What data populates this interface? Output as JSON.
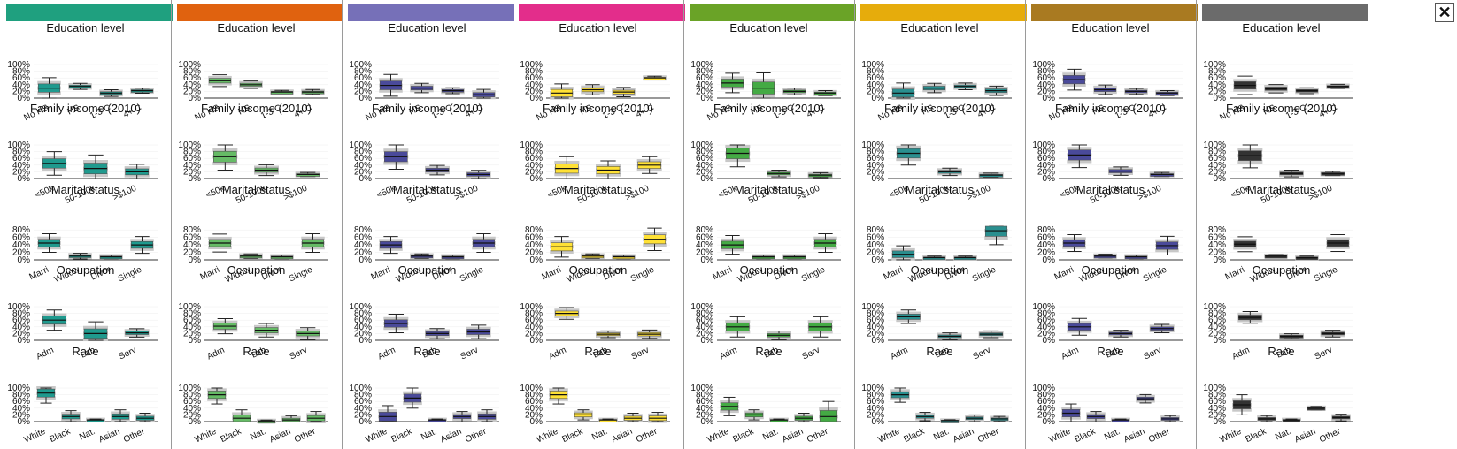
{
  "close_button": {
    "glyph": "✕",
    "icon": "close-icon"
  },
  "y_ticks_full": [
    "100%",
    "80%",
    "60%",
    "40%",
    "20%",
    "0%"
  ],
  "y_ticks_marital": [
    "80%",
    "60%",
    "40%",
    "20%",
    "0%"
  ],
  "chart_data": {
    "type": "boxplot",
    "yrange": [
      0,
      100
    ],
    "columns": [
      {
        "header_color": "#1fa07f",
        "highlight": "#1f9a8e"
      },
      {
        "header_color": "#e0620f",
        "highlight": "#66bb66"
      },
      {
        "header_color": "#7670b8",
        "highlight": "#4a4a9a"
      },
      {
        "header_color": "#e32d8b",
        "highlight": "#ffe135"
      },
      {
        "header_color": "#6aa327",
        "highlight": "#44aa44"
      },
      {
        "header_color": "#e6ac0c",
        "highlight": "#2a8f8f"
      },
      {
        "header_color": "#a97a21",
        "highlight": "#4a4a9a"
      },
      {
        "header_color": "#6b6b6b",
        "highlight": "#333333"
      }
    ],
    "panels": [
      {
        "title": "Education level",
        "categories": [
          "No HS",
          "HS",
          "1-3 C",
          "4+ C"
        ],
        "ymax": 100,
        "values": [
          [
            [
              30,
              62
            ],
            [
              35,
              18
            ],
            [
              15,
              20
            ],
            [
              22,
              15
            ]
          ],
          [
            [
              52,
              35
            ],
            [
              40,
              22
            ],
            [
              18,
              10
            ],
            [
              18,
              15
            ]
          ],
          [
            [
              38,
              65
            ],
            [
              30,
              28
            ],
            [
              22,
              18
            ],
            [
              10,
              32
            ]
          ],
          [
            [
              15,
              55
            ],
            [
              25,
              30
            ],
            [
              18,
              28
            ],
            [
              60,
              10
            ]
          ],
          [
            [
              45,
              58
            ],
            [
              30,
              90
            ],
            [
              20,
              20
            ],
            [
              15,
              15
            ]
          ],
          [
            [
              15,
              60
            ],
            [
              30,
              28
            ],
            [
              35,
              20
            ],
            [
              22,
              28
            ]
          ],
          [
            [
              55,
              62
            ],
            [
              25,
              28
            ],
            [
              20,
              18
            ],
            [
              15,
              15
            ]
          ],
          [
            [
              38,
              55
            ],
            [
              28,
              25
            ],
            [
              22,
              18
            ],
            [
              35,
              12
            ]
          ]
        ]
      },
      {
        "title": "Family income (2010)",
        "categories": [
          "<50k",
          "50-100k",
          ">$100"
        ],
        "ymax": 100,
        "values": [
          [
            [
              45,
              70
            ],
            [
              30,
              80
            ],
            [
              20,
              45
            ]
          ],
          [
            [
              65,
              80
            ],
            [
              25,
              32
            ],
            [
              12,
              12
            ]
          ],
          [
            [
              65,
              75
            ],
            [
              25,
              28
            ],
            [
              12,
              25
            ]
          ],
          [
            [
              30,
              70
            ],
            [
              25,
              55
            ],
            [
              40,
              50
            ]
          ],
          [
            [
              75,
              80
            ],
            [
              15,
              20
            ],
            [
              10,
              15
            ]
          ],
          [
            [
              75,
              70
            ],
            [
              20,
              22
            ],
            [
              10,
              12
            ]
          ],
          [
            [
              70,
              75
            ],
            [
              22,
              25
            ],
            [
              12,
              12
            ]
          ],
          [
            [
              68,
              72
            ],
            [
              15,
              20
            ],
            [
              15,
              12
            ]
          ]
        ]
      },
      {
        "title": "Marital status",
        "categories": [
          "Marri",
          "Widow",
          "Divor",
          "Single"
        ],
        "ymax": 90,
        "values": [
          [
            [
              45,
              50
            ],
            [
              10,
              15
            ],
            [
              8,
              10
            ],
            [
              40,
              45
            ]
          ],
          [
            [
              45,
              48
            ],
            [
              10,
              12
            ],
            [
              8,
              10
            ],
            [
              45,
              50
            ]
          ],
          [
            [
              40,
              45
            ],
            [
              10,
              12
            ],
            [
              8,
              10
            ],
            [
              45,
              50
            ]
          ],
          [
            [
              35,
              55
            ],
            [
              10,
              12
            ],
            [
              8,
              10
            ],
            [
              55,
              60
            ]
          ],
          [
            [
              40,
              50
            ],
            [
              8,
              10
            ],
            [
              8,
              10
            ],
            [
              45,
              50
            ]
          ],
          [
            [
              15,
              45
            ],
            [
              6,
              8
            ],
            [
              6,
              8
            ],
            [
              78,
              75
            ]
          ],
          [
            [
              45,
              45
            ],
            [
              10,
              10
            ],
            [
              8,
              10
            ],
            [
              38,
              50
            ]
          ],
          [
            [
              42,
              40
            ],
            [
              10,
              8
            ],
            [
              6,
              8
            ],
            [
              45,
              45
            ]
          ]
        ]
      },
      {
        "title": "Occupation",
        "categories": [
          "Adm",
          "Lab",
          "Serv"
        ],
        "ymax": 100,
        "values": [
          [
            [
              60,
              60
            ],
            [
              20,
              70
            ],
            [
              22,
              25
            ]
          ],
          [
            [
              42,
              45
            ],
            [
              30,
              40
            ],
            [
              20,
              35
            ]
          ],
          [
            [
              50,
              55
            ],
            [
              20,
              30
            ],
            [
              25,
              40
            ]
          ],
          [
            [
              80,
              35
            ],
            [
              18,
              20
            ],
            [
              18,
              25
            ]
          ],
          [
            [
              40,
              60
            ],
            [
              15,
              25
            ],
            [
              40,
              60
            ]
          ],
          [
            [
              70,
              40
            ],
            [
              12,
              20
            ],
            [
              18,
              20
            ]
          ],
          [
            [
              40,
              50
            ],
            [
              20,
              20
            ],
            [
              35,
              25
            ]
          ],
          [
            [
              68,
              35
            ],
            [
              12,
              15
            ],
            [
              20,
              20
            ]
          ]
        ]
      },
      {
        "title": "Race",
        "categories": [
          "White",
          "Black",
          "Nat.",
          "Asian",
          "Other"
        ],
        "ymax": 100,
        "values": [
          [
            [
              85,
              60
            ],
            [
              15,
              35
            ],
            [
              5,
              5
            ],
            [
              15,
              40
            ],
            [
              10,
              30
            ]
          ],
          [
            [
              80,
              55
            ],
            [
              10,
              50
            ],
            [
              2,
              5
            ],
            [
              5,
              25
            ],
            [
              10,
              40
            ]
          ],
          [
            [
              15,
              65
            ],
            [
              70,
              60
            ],
            [
              5,
              5
            ],
            [
              15,
              30
            ],
            [
              15,
              40
            ]
          ],
          [
            [
              80,
              55
            ],
            [
              20,
              30
            ],
            [
              5,
              5
            ],
            [
              10,
              30
            ],
            [
              10,
              35
            ]
          ],
          [
            [
              45,
              55
            ],
            [
              20,
              30
            ],
            [
              5,
              5
            ],
            [
              10,
              30
            ],
            [
              15,
              90
            ]
          ],
          [
            [
              80,
              45
            ],
            [
              15,
              25
            ],
            [
              3,
              5
            ],
            [
              10,
              20
            ],
            [
              8,
              15
            ]
          ],
          [
            [
              25,
              55
            ],
            [
              15,
              30
            ],
            [
              5,
              5
            ],
            [
              68,
              25
            ],
            [
              8,
              20
            ]
          ],
          [
            [
              50,
              60
            ],
            [
              8,
              20
            ],
            [
              5,
              5
            ],
            [
              40,
              10
            ],
            [
              12,
              20
            ]
          ]
        ]
      }
    ]
  }
}
